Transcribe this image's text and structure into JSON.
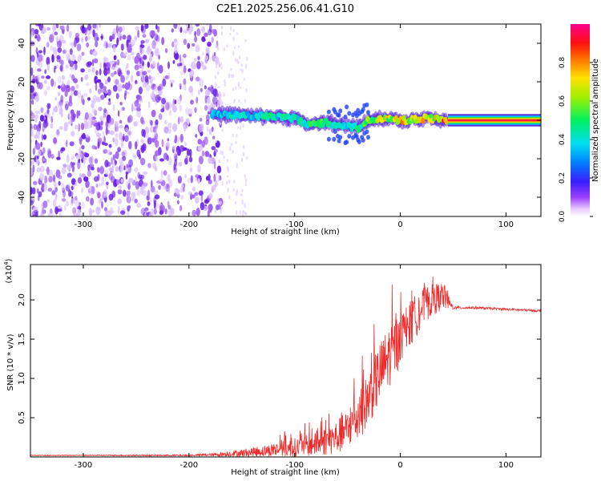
{
  "title": "C2E1.2025.256.06.41.G10",
  "colors": {
    "snr_line": "#ee2a2a",
    "ridge_bg": "#5a2ad8",
    "scatter": "#6a1fe6"
  },
  "chart_data": [
    {
      "type": "heatmap",
      "title": "C2E1.2025.256.06.41.G10",
      "xlabel": "Height of straight line (km)",
      "ylabel": "Frequency (Hz)",
      "xlim": [
        -350,
        133
      ],
      "ylim": [
        -50,
        50
      ],
      "x_ticks": [
        "-300",
        "-200",
        "-100",
        "0",
        "100"
      ],
      "y_ticks": [
        "-40",
        "-20",
        "0",
        "20",
        "40"
      ],
      "colorbar": {
        "label": "Normalized spectral amplitude",
        "range": [
          0,
          1
        ],
        "ticks": [
          "0.0",
          "0.2",
          "0.4",
          "0.6",
          "0.8"
        ],
        "colormap": "rainbow (white-violet-blue-cyan-green-yellow-red-magenta)"
      },
      "ridge": {
        "x": [
          -178,
          -160,
          -140,
          -120,
          -100,
          -90,
          -80,
          -70,
          -60,
          -50,
          -40,
          -30,
          -20,
          -10,
          0,
          10,
          20,
          30,
          40,
          50,
          60,
          80,
          100,
          133
        ],
        "freq": [
          3,
          3,
          2,
          2,
          1,
          -2,
          -2,
          -1,
          -2,
          -3,
          -4,
          0,
          1,
          1,
          0,
          0,
          1,
          1,
          0,
          0,
          0,
          0,
          0,
          0
        ],
        "amplitude": [
          0.35,
          0.4,
          0.4,
          0.45,
          0.45,
          0.45,
          0.5,
          0.5,
          0.45,
          0.45,
          0.45,
          0.6,
          0.65,
          0.7,
          0.8,
          0.75,
          0.75,
          0.7,
          0.85,
          0.95,
          0.95,
          0.95,
          0.95,
          0.95
        ]
      }
    },
    {
      "type": "line",
      "xlabel": "Height of straight line (km)",
      "ylabel": "SNR (10 * v/v)",
      "y_scale_label": "(x10",
      "y_scale_exponent": "4",
      "xlim": [
        -350,
        133
      ],
      "ylim": [
        0,
        2.45
      ],
      "x_ticks": [
        "-300",
        "-200",
        "-100",
        "0",
        "100"
      ],
      "y_ticks": [
        "0.5",
        "1.0",
        "1.5",
        "2.0"
      ],
      "series": [
        {
          "x": [
            -350,
            -300,
            -250,
            -200,
            -175,
            -150,
            -125,
            -100,
            -80,
            -60,
            -50,
            -40,
            -30,
            -20,
            -10,
            0,
            10,
            20,
            30,
            40,
            50,
            70,
            100,
            133
          ],
          "y": [
            0.02,
            0.02,
            0.02,
            0.02,
            0.03,
            0.05,
            0.08,
            0.12,
            0.16,
            0.25,
            0.35,
            0.5,
            0.75,
            1.05,
            1.3,
            1.5,
            1.7,
            1.9,
            2.0,
            2.05,
            1.9,
            1.9,
            1.88,
            1.86
          ],
          "noise": [
            0.005,
            0.005,
            0.008,
            0.01,
            0.02,
            0.05,
            0.08,
            0.12,
            0.15,
            0.22,
            0.25,
            0.3,
            0.35,
            0.4,
            0.4,
            0.35,
            0.3,
            0.25,
            0.2,
            0.18,
            0.02,
            0.015,
            0.015,
            0.015
          ]
        }
      ]
    }
  ]
}
